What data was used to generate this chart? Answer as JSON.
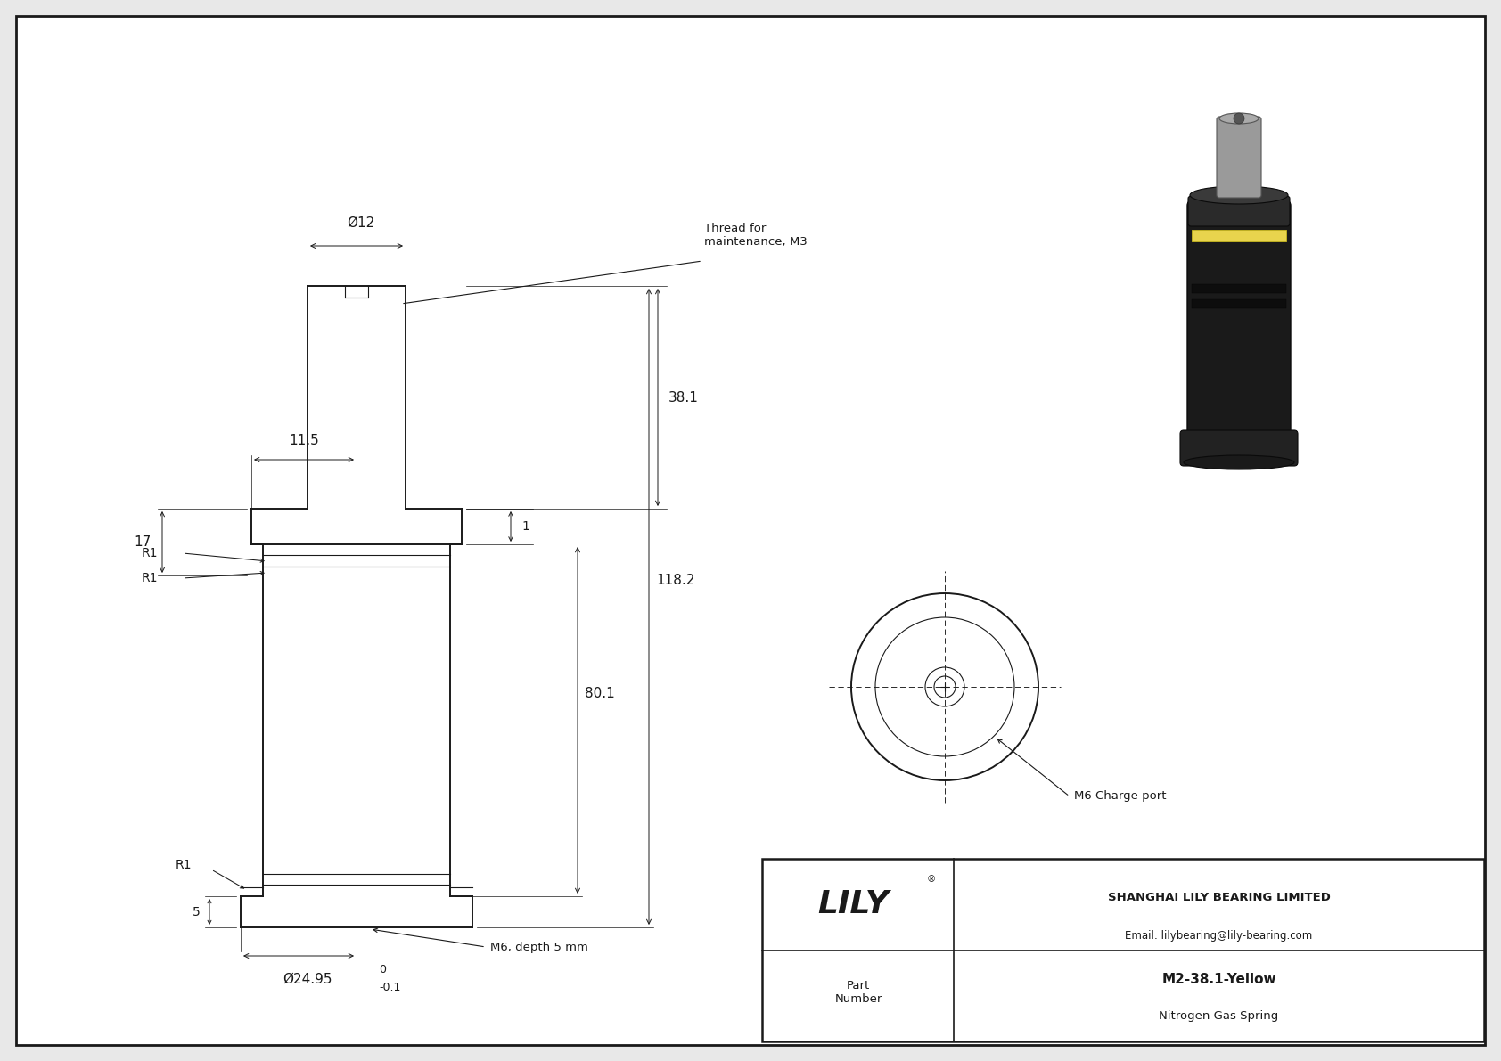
{
  "bg_color": "#e8e8e8",
  "drawing_bg": "#ffffff",
  "line_color": "#1a1a1a",
  "title": "M2-38.1-Yellow",
  "subtitle": "Nitrogen Gas Spring",
  "company": "SHANGHAI LILY BEARING LIMITED",
  "email": "Email: lilybearing@lily-bearing.com",
  "part_label": "Part\nNumber",
  "lily_text": "LILY",
  "thread_label": "Thread for\nmaintenance, M3",
  "m6_label": "M6, depth 5 mm",
  "m6_charge": "M6 Charge port",
  "dim_dia12": "Ø12",
  "dim_381": "38.1",
  "dim_115": "11.5",
  "dim_17": "17",
  "dim_1": "1",
  "dim_801": "80.1",
  "dim_1182": "118.2",
  "dim_5": "5",
  "dim_0": "0",
  "dim_dia2495": "Ø24.95",
  "dim_tol": "-0.1",
  "dim_r1": "R1"
}
